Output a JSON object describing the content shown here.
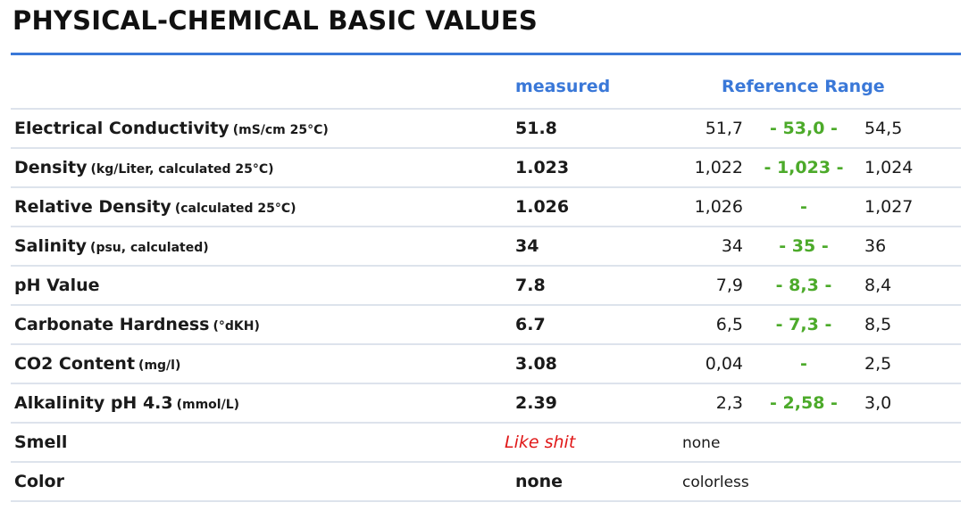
{
  "title": "PHYSICAL-CHEMICAL BASIC VALUES",
  "headers": {
    "measured": "measured",
    "reference": "Reference Range"
  },
  "rows": [
    {
      "name": "Electrical Conductivity",
      "unit": "(mS/cm 25°C)",
      "measured": "51.8",
      "low": "51,7",
      "optimal": "- 53,0 -",
      "high": "54,5"
    },
    {
      "name": "Density",
      "unit": "(kg/Liter, calculated 25°C)",
      "measured": "1.023",
      "low": "1,022",
      "optimal": "- 1,023 -",
      "high": "1,024"
    },
    {
      "name": "Relative Density",
      "unit": "(calculated 25°C)",
      "measured": "1.026",
      "low": "1,026",
      "optimal": "-",
      "high": "1,027"
    },
    {
      "name": "Salinity",
      "unit": "(psu, calculated)",
      "measured": "34",
      "low": "34",
      "optimal": "- 35 -",
      "high": "36"
    },
    {
      "name": "pH Value",
      "unit": "",
      "measured": "7.8",
      "low": "7,9",
      "optimal": "- 8,3 -",
      "high": "8,4"
    },
    {
      "name": "Carbonate Hardness",
      "unit": "(°dKH)",
      "measured": "6.7",
      "low": "6,5",
      "optimal": "- 7,3 -",
      "high": "8,5"
    },
    {
      "name": "CO2 Content",
      "unit": "(mg/l)",
      "measured": "3.08",
      "low": "0,04",
      "optimal": "-",
      "high": "2,5"
    },
    {
      "name": "Alkalinity pH 4.3",
      "unit": "(mmol/L)",
      "measured": "2.39",
      "low": "2,3",
      "optimal": "- 2,58 -",
      "high": "3,0"
    },
    {
      "name": "Smell",
      "unit": "",
      "measured": "Like shit",
      "reference_text": "none"
    },
    {
      "name": "Color",
      "unit": "",
      "measured": "none",
      "reference_text": "colorless"
    }
  ],
  "colors": {
    "accent": "#3a78d8",
    "optimal": "#4caa2a",
    "alert": "#e01818"
  }
}
